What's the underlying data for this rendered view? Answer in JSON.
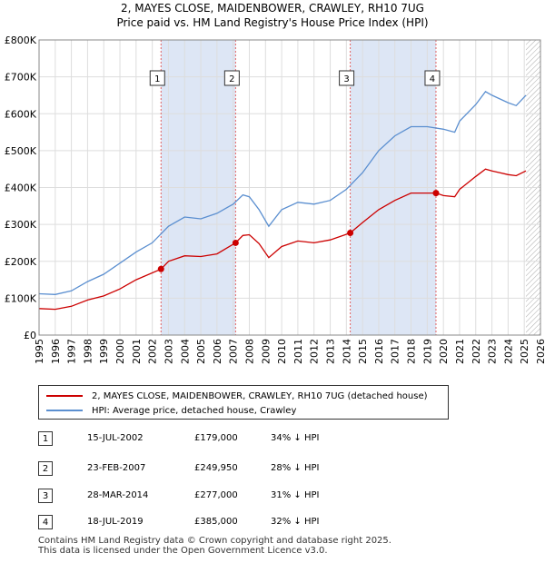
{
  "title_line1": "2, MAYES CLOSE, MAIDENBOWER, CRAWLEY, RH10 7UG",
  "title_line2": "Price paid vs. HM Land Registry's House Price Index (HPI)",
  "colors": {
    "property": "#cc0000",
    "hpi": "#5b8fd0",
    "shade": "#dde6f5",
    "grid": "#dddddd"
  },
  "chart_data": {
    "type": "line",
    "xlim": [
      1995,
      2026
    ],
    "ylim": [
      0,
      800000
    ],
    "x_ticks": [
      "1995",
      "1996",
      "1997",
      "1998",
      "1999",
      "2000",
      "2001",
      "2002",
      "2003",
      "2004",
      "2005",
      "2006",
      "2007",
      "2008",
      "2009",
      "2010",
      "2011",
      "2012",
      "2013",
      "2014",
      "2015",
      "2016",
      "2017",
      "2018",
      "2019",
      "2020",
      "2021",
      "2022",
      "2023",
      "2024",
      "2025",
      "2026"
    ],
    "y_ticks": [
      {
        "value": 0,
        "label": "£0"
      },
      {
        "value": 100000,
        "label": "£100K"
      },
      {
        "value": 200000,
        "label": "£200K"
      },
      {
        "value": 300000,
        "label": "£300K"
      },
      {
        "value": 400000,
        "label": "£400K"
      },
      {
        "value": 500000,
        "label": "£500K"
      },
      {
        "value": 600000,
        "label": "£600K"
      },
      {
        "value": 700000,
        "label": "£700K"
      },
      {
        "value": 800000,
        "label": "£800K"
      }
    ],
    "shaded_ranges": [
      [
        2002.54,
        2007.15
      ],
      [
        2014.24,
        2019.54
      ]
    ],
    "hatch_from": 2025.1,
    "series": [
      {
        "name": "2, MAYES CLOSE, MAIDENBOWER, CRAWLEY, RH10 7UG (detached house)",
        "color": "#cc0000",
        "points": [
          [
            1995,
            72000
          ],
          [
            1996,
            70000
          ],
          [
            1997,
            78000
          ],
          [
            1998,
            95000
          ],
          [
            1999,
            106000
          ],
          [
            2000,
            125000
          ],
          [
            2001,
            150000
          ],
          [
            2002.54,
            179000
          ],
          [
            2003,
            200000
          ],
          [
            2004,
            215000
          ],
          [
            2005,
            213000
          ],
          [
            2006,
            220000
          ],
          [
            2007.15,
            249950
          ],
          [
            2007.6,
            270000
          ],
          [
            2008,
            272000
          ],
          [
            2008.6,
            248000
          ],
          [
            2009.2,
            210000
          ],
          [
            2010,
            240000
          ],
          [
            2011,
            255000
          ],
          [
            2012,
            250000
          ],
          [
            2013,
            258000
          ],
          [
            2014.24,
            277000
          ],
          [
            2015,
            305000
          ],
          [
            2016,
            340000
          ],
          [
            2017,
            365000
          ],
          [
            2018,
            385000
          ],
          [
            2019.54,
            385000
          ],
          [
            2020,
            378000
          ],
          [
            2020.7,
            375000
          ],
          [
            2021,
            395000
          ],
          [
            2022,
            430000
          ],
          [
            2022.6,
            450000
          ],
          [
            2023,
            445000
          ],
          [
            2023.5,
            440000
          ],
          [
            2024,
            435000
          ],
          [
            2024.5,
            432000
          ],
          [
            2025.1,
            445000
          ]
        ]
      },
      {
        "name": "HPI: Average price, detached house, Crawley",
        "color": "#5b8fd0",
        "points": [
          [
            1995,
            112000
          ],
          [
            1996,
            110000
          ],
          [
            1997,
            120000
          ],
          [
            1998,
            145000
          ],
          [
            1999,
            165000
          ],
          [
            2000,
            195000
          ],
          [
            2001,
            225000
          ],
          [
            2002,
            250000
          ],
          [
            2003,
            295000
          ],
          [
            2004,
            320000
          ],
          [
            2005,
            315000
          ],
          [
            2006,
            330000
          ],
          [
            2007,
            355000
          ],
          [
            2007.6,
            380000
          ],
          [
            2008,
            375000
          ],
          [
            2008.6,
            340000
          ],
          [
            2009.2,
            295000
          ],
          [
            2010,
            340000
          ],
          [
            2011,
            360000
          ],
          [
            2012,
            355000
          ],
          [
            2013,
            365000
          ],
          [
            2014,
            395000
          ],
          [
            2015,
            440000
          ],
          [
            2016,
            500000
          ],
          [
            2017,
            540000
          ],
          [
            2018,
            565000
          ],
          [
            2019,
            565000
          ],
          [
            2020,
            558000
          ],
          [
            2020.7,
            550000
          ],
          [
            2021,
            580000
          ],
          [
            2022,
            625000
          ],
          [
            2022.6,
            660000
          ],
          [
            2023,
            650000
          ],
          [
            2023.5,
            640000
          ],
          [
            2024,
            630000
          ],
          [
            2024.5,
            622000
          ],
          [
            2025.1,
            650000
          ]
        ]
      }
    ],
    "sales": [
      {
        "n": "1",
        "x": 2002.54,
        "y": 179000
      },
      {
        "n": "2",
        "x": 2007.15,
        "y": 249950
      },
      {
        "n": "3",
        "x": 2014.24,
        "y": 277000
      },
      {
        "n": "4",
        "x": 2019.54,
        "y": 385000
      }
    ]
  },
  "legend": {
    "property_label": "2, MAYES CLOSE, MAIDENBOWER, CRAWLEY, RH10 7UG (detached house)",
    "hpi_label": "HPI: Average price, detached house, Crawley"
  },
  "sales_table": [
    {
      "n": "1",
      "date": "15-JUL-2002",
      "price": "£179,000",
      "hpi": "34% ↓ HPI"
    },
    {
      "n": "2",
      "date": "23-FEB-2007",
      "price": "£249,950",
      "hpi": "28% ↓ HPI"
    },
    {
      "n": "3",
      "date": "28-MAR-2014",
      "price": "£277,000",
      "hpi": "31% ↓ HPI"
    },
    {
      "n": "4",
      "date": "18-JUL-2019",
      "price": "£385,000",
      "hpi": "32% ↓ HPI"
    }
  ],
  "footer_line1": "Contains HM Land Registry data © Crown copyright and database right 2025.",
  "footer_line2": "This data is licensed under the Open Government Licence v3.0."
}
